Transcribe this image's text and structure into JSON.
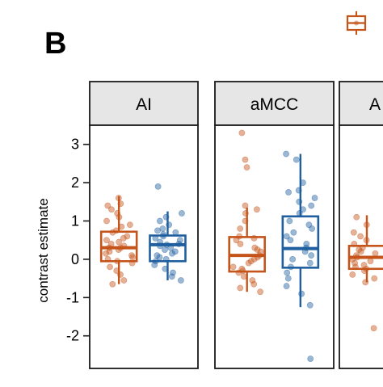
{
  "panel_letter": "B",
  "colors": {
    "orange": "#c5541a",
    "blue": "#1f5fa0",
    "strip_fill": "#e6e6e6",
    "frame": "#1a1a1a"
  },
  "legend": {
    "visible_key_color": "orange",
    "entries": []
  },
  "chart_data": {
    "type": "box",
    "ylabel": "contrast estimate",
    "ylim": [
      -2.85,
      3.5
    ],
    "yticks": [
      -2,
      -1,
      0,
      1,
      2,
      3
    ],
    "ytick_labels": [
      "-2",
      "-1",
      "0",
      "1",
      "2",
      "3"
    ],
    "grid": false,
    "facets": [
      {
        "label": "AI",
        "groups": [
          {
            "color": "orange",
            "box": {
              "min": -0.65,
              "q1": -0.05,
              "median": 0.3,
              "q3": 0.72,
              "max": 1.65
            },
            "points": [
              1.6,
              1.45,
              1.4,
              1.3,
              1.2,
              1.1,
              1.0,
              0.9,
              0.85,
              0.75,
              0.7,
              0.6,
              0.55,
              0.5,
              0.45,
              0.4,
              0.35,
              0.3,
              0.3,
              0.25,
              0.2,
              0.15,
              0.1,
              0.05,
              0.0,
              -0.05,
              -0.1,
              -0.2,
              -0.3,
              -0.4,
              -0.55,
              -0.65
            ]
          },
          {
            "color": "blue",
            "box": {
              "min": -0.55,
              "q1": -0.05,
              "median": 0.38,
              "q3": 0.62,
              "max": 1.25
            },
            "points": [
              1.9,
              1.2,
              1.1,
              1.0,
              0.9,
              0.8,
              0.75,
              0.7,
              0.65,
              0.6,
              0.55,
              0.5,
              0.45,
              0.4,
              0.38,
              0.35,
              0.3,
              0.25,
              0.2,
              0.15,
              0.1,
              0.05,
              0.0,
              -0.05,
              -0.15,
              -0.25,
              -0.35,
              -0.45,
              -0.55
            ]
          }
        ]
      },
      {
        "label": "aMCC",
        "groups": [
          {
            "color": "orange",
            "box": {
              "min": -0.85,
              "q1": -0.32,
              "median": 0.1,
              "q3": 0.58,
              "max": 1.35
            },
            "points": [
              3.3,
              2.6,
              2.4,
              1.4,
              1.3,
              1.2,
              1.0,
              0.8,
              0.6,
              0.55,
              0.5,
              0.4,
              0.3,
              0.25,
              0.2,
              0.1,
              0.05,
              0.0,
              -0.05,
              -0.1,
              -0.2,
              -0.25,
              -0.3,
              -0.35,
              -0.45,
              -0.55,
              -0.65,
              -0.75,
              -0.85
            ]
          },
          {
            "color": "blue",
            "box": {
              "min": -1.25,
              "q1": -0.22,
              "median": 0.28,
              "q3": 1.12,
              "max": 2.75
            },
            "points": [
              2.75,
              2.6,
              2.0,
              1.8,
              1.75,
              1.6,
              1.5,
              1.4,
              1.3,
              1.2,
              1.0,
              0.9,
              0.8,
              0.7,
              0.6,
              0.5,
              0.4,
              0.3,
              0.2,
              0.1,
              0.0,
              -0.1,
              -0.2,
              -0.35,
              -0.5,
              -0.7,
              -0.9,
              -1.2,
              -2.6
            ]
          }
        ]
      },
      {
        "label": "A",
        "groups": [
          {
            "color": "orange",
            "box": {
              "min": -0.6,
              "q1": -0.25,
              "median": 0.05,
              "q3": 0.35,
              "max": 1.15
            },
            "points": [
              1.1,
              0.9,
              0.7,
              0.6,
              0.5,
              0.4,
              0.3,
              0.25,
              0.2,
              0.15,
              0.1,
              0.05,
              0.0,
              -0.05,
              -0.1,
              -0.15,
              -0.2,
              -0.25,
              -0.3,
              -0.4,
              -0.5,
              -0.6,
              -1.8
            ]
          }
        ]
      }
    ]
  }
}
